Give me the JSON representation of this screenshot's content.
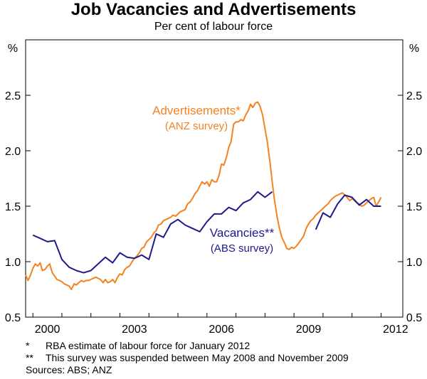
{
  "chart_data": {
    "type": "line",
    "title": "Job Vacancies and Advertisements",
    "subtitle": "Per cent of labour force",
    "y_unit_left": "%",
    "y_unit_right": "%",
    "ylim": [
      0.5,
      3.0
    ],
    "y_ticks": [
      "0.5",
      "1.0",
      "1.5",
      "2.0",
      "2.5"
    ],
    "xlim": [
      1999.75,
      2012.75
    ],
    "x_ticks": [
      "2000",
      "2003",
      "2006",
      "2009",
      "2012"
    ],
    "grid": false,
    "series": [
      {
        "name": "Advertisements*",
        "label_sub": "(ANZ survey)",
        "color": "#F58220",
        "x": [
          1999.75,
          1999.83,
          1999.92,
          2000.0,
          2000.08,
          2000.17,
          2000.25,
          2000.33,
          2000.42,
          2000.5,
          2000.58,
          2000.67,
          2000.75,
          2000.83,
          2000.92,
          2001.0,
          2001.08,
          2001.17,
          2001.25,
          2001.33,
          2001.42,
          2001.5,
          2001.58,
          2001.67,
          2001.75,
          2001.83,
          2001.92,
          2002.0,
          2002.08,
          2002.17,
          2002.25,
          2002.33,
          2002.42,
          2002.5,
          2002.58,
          2002.67,
          2002.75,
          2002.83,
          2002.92,
          2003.0,
          2003.08,
          2003.17,
          2003.25,
          2003.33,
          2003.42,
          2003.5,
          2003.58,
          2003.67,
          2003.75,
          2003.83,
          2003.92,
          2004.0,
          2004.08,
          2004.17,
          2004.25,
          2004.33,
          2004.42,
          2004.5,
          2004.58,
          2004.67,
          2004.75,
          2004.83,
          2004.92,
          2005.0,
          2005.08,
          2005.17,
          2005.25,
          2005.33,
          2005.42,
          2005.5,
          2005.58,
          2005.67,
          2005.75,
          2005.83,
          2005.92,
          2006.0,
          2006.08,
          2006.17,
          2006.25,
          2006.33,
          2006.42,
          2006.5,
          2006.58,
          2006.67,
          2006.75,
          2006.83,
          2006.92,
          2007.0,
          2007.08,
          2007.17,
          2007.25,
          2007.33,
          2007.42,
          2007.5,
          2007.58,
          2007.67,
          2007.75,
          2007.83,
          2007.92,
          2008.0,
          2008.08,
          2008.17,
          2008.25,
          2008.33,
          2008.42,
          2008.5,
          2008.58,
          2008.67,
          2008.75,
          2008.83,
          2008.92,
          2009.0,
          2009.08,
          2009.17,
          2009.25,
          2009.33,
          2009.42,
          2009.5,
          2009.58,
          2009.67,
          2009.75,
          2009.83,
          2009.92,
          2010.0,
          2010.08,
          2010.17,
          2010.25,
          2010.33,
          2010.42,
          2010.5,
          2010.58,
          2010.67,
          2010.75,
          2010.83,
          2010.92,
          2011.0,
          2011.08,
          2011.17,
          2011.25,
          2011.33,
          2011.42,
          2011.5,
          2011.58,
          2011.67,
          2011.75,
          2011.83,
          2011.92,
          2012.0
        ],
        "y": [
          0.88,
          0.83,
          0.88,
          0.94,
          0.98,
          0.96,
          0.99,
          0.92,
          0.93,
          0.96,
          0.98,
          0.9,
          0.87,
          0.84,
          0.83,
          0.82,
          0.8,
          0.79,
          0.78,
          0.75,
          0.8,
          0.79,
          0.81,
          0.83,
          0.82,
          0.83,
          0.83,
          0.84,
          0.85,
          0.86,
          0.85,
          0.84,
          0.81,
          0.84,
          0.81,
          0.82,
          0.84,
          0.81,
          0.86,
          0.89,
          0.88,
          0.93,
          0.95,
          0.96,
          1.0,
          1.03,
          1.05,
          1.08,
          1.12,
          1.13,
          1.18,
          1.2,
          1.22,
          1.26,
          1.28,
          1.33,
          1.34,
          1.37,
          1.38,
          1.39,
          1.4,
          1.42,
          1.41,
          1.43,
          1.45,
          1.46,
          1.47,
          1.52,
          1.54,
          1.57,
          1.61,
          1.64,
          1.68,
          1.72,
          1.7,
          1.72,
          1.68,
          1.74,
          1.72,
          1.72,
          1.78,
          1.88,
          1.87,
          1.94,
          2.03,
          2.08,
          2.24,
          2.26,
          2.26,
          2.28,
          2.27,
          2.32,
          2.36,
          2.42,
          2.39,
          2.43,
          2.44,
          2.4,
          2.32,
          2.2,
          2.08,
          1.9,
          1.72,
          1.55,
          1.4,
          1.3,
          1.22,
          1.17,
          1.12,
          1.11,
          1.13,
          1.12,
          1.14,
          1.17,
          1.2,
          1.23,
          1.3,
          1.34,
          1.37,
          1.39,
          1.42,
          1.44,
          1.46,
          1.48,
          1.5,
          1.52,
          1.55,
          1.57,
          1.59,
          1.6,
          1.61,
          1.62,
          1.6,
          1.58,
          1.55,
          1.57,
          1.55,
          1.53,
          1.52,
          1.5,
          1.51,
          1.53,
          1.55,
          1.57,
          1.58,
          1.5,
          1.54,
          1.58
        ]
      },
      {
        "name": "Vacancies**",
        "label_sub": "(ABS survey)",
        "color": "#1F1A8C",
        "segments": [
          {
            "x": [
              2000.0,
              2000.25,
              2000.5,
              2000.75,
              2001.0,
              2001.25,
              2001.5,
              2001.75,
              2002.0,
              2002.25,
              2002.5,
              2002.75,
              2003.0,
              2003.25,
              2003.5,
              2003.75,
              2004.0,
              2004.25,
              2004.5,
              2004.75,
              2005.0,
              2005.25,
              2005.5,
              2005.75,
              2006.0,
              2006.25,
              2006.5,
              2006.75,
              2007.0,
              2007.25,
              2007.5,
              2007.75,
              2008.0,
              2008.25
            ],
            "y": [
              1.24,
              1.21,
              1.18,
              1.19,
              1.02,
              0.95,
              0.92,
              0.9,
              0.92,
              0.98,
              1.04,
              0.99,
              1.08,
              1.04,
              1.03,
              1.06,
              1.02,
              1.25,
              1.22,
              1.34,
              1.38,
              1.33,
              1.3,
              1.27,
              1.36,
              1.43,
              1.43,
              1.49,
              1.46,
              1.53,
              1.56,
              1.63,
              1.58,
              1.63
            ]
          },
          {
            "x": [
              2009.75,
              2010.0,
              2010.25,
              2010.5,
              2010.75,
              2011.0,
              2011.25,
              2011.5,
              2011.75,
              2012.0
            ],
            "y": [
              1.29,
              1.44,
              1.4,
              1.52,
              1.6,
              1.58,
              1.51,
              1.56,
              1.5,
              1.5
            ]
          }
        ]
      }
    ],
    "legend": "inline annotations"
  },
  "notes": [
    {
      "mark": "*",
      "text": "RBA estimate of labour force for January 2012"
    },
    {
      "mark": "**",
      "text": "This survey was suspended between May 2008 and November 2009"
    },
    {
      "mark": "",
      "text": "Sources: ABS; ANZ"
    }
  ]
}
